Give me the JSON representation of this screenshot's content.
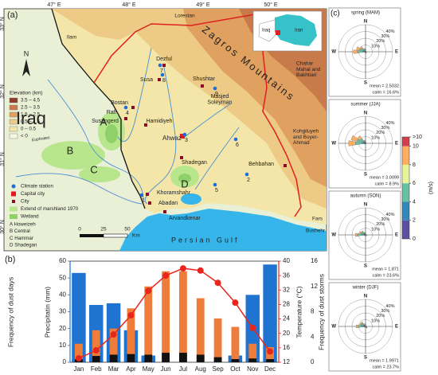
{
  "map": {
    "panel_label": "(a)",
    "lon_labels": [
      "47° E",
      "48° E",
      "49° E",
      "50° E"
    ],
    "lat_labels": [
      "33° N",
      "32° N",
      "31° N",
      "30° N"
    ],
    "north": "N",
    "country_labels": [
      "Iraq"
    ],
    "provinces": [
      "Lorestan",
      "Ilam",
      [
        "Chahar",
        "Mahal and",
        "Bakhtiari"
      ],
      [
        "Kohgiluyeh",
        "and Boyer-",
        "Ahmad"
      ],
      "Fars",
      "Bushehr"
    ],
    "cities": [
      "Dezful",
      "Susa",
      "Shushtar",
      [
        "Masjed",
        "Soleyman"
      ],
      "Bostan",
      "Rafi",
      "Susangerd",
      "Hamidiyeh",
      "Ahwaz",
      "Shadegan",
      "Khoramshahr",
      "Abadan",
      "Arvandkenar",
      "Behbahan"
    ],
    "marsh_labels": [
      "A",
      "B",
      "C",
      "D"
    ],
    "station_numbers": [
      "1",
      "2",
      "3",
      "4",
      "5",
      "6",
      "7",
      "8",
      "9"
    ],
    "mountains": "Zagros Mountains",
    "sea": "Persian Gulf",
    "river": "Euphrates",
    "legend": {
      "elevation_title": "Elevation (km)",
      "elevation_classes": [
        {
          "label": "3.5 – 4.5",
          "color": "#8f3b2b"
        },
        {
          "label": "2.5 – 3.5",
          "color": "#c87a4a"
        },
        {
          "label": "1.5 – 2.5",
          "color": "#e0a060"
        },
        {
          "label": "0.5 – 1.5",
          "color": "#edca85"
        },
        {
          "label": "0 – 0.5",
          "color": "#f3e6a8"
        },
        {
          "label": "< 0",
          "color": "#f6f6e2"
        }
      ],
      "symbols": [
        "Climate station",
        "Capital city",
        "City",
        "Extend of marshland 1970",
        "Wetland"
      ],
      "marshes": [
        "A Howeizeh",
        "B Central",
        "C Hammar",
        "D Shadegan"
      ]
    },
    "scale_bar": [
      "0",
      "25",
      "50",
      "Km"
    ],
    "inset": [
      "Iraq",
      "Iran"
    ]
  },
  "panel_c": {
    "label": "(c)"
  },
  "wind_colorbar": {
    "lim": [
      0,
      11
    ],
    "ticks": [
      0,
      2,
      4,
      6,
      8,
      10,
      {
        "value": 11,
        "label": ">10"
      }
    ],
    "colors": [
      "#5e4fa2",
      "#3288bd",
      "#66c2a5",
      "#e6f598",
      "#fdae61",
      "#d53e4f"
    ],
    "unit": "(m/s)"
  },
  "chart_data": [
    {
      "type": "combo",
      "panel_label": "(b)",
      "categories": [
        "Jan",
        "Feb",
        "Mar",
        "Apr",
        "May",
        "Jun",
        "Jul",
        "Aug",
        "Sep",
        "Oct",
        "Nov",
        "Dec"
      ],
      "ylabel_outer": "Frequency of dust days",
      "ylabel": "Precipitatin (mm)",
      "y2label": "Temperature (°C)",
      "y3label": "Frequency of dust storms",
      "ylim": [
        0,
        60
      ],
      "yticks": [
        0,
        10,
        20,
        30,
        40,
        50,
        60
      ],
      "y2lim": [
        12,
        40
      ],
      "y2ticks": [
        12,
        16,
        20,
        24,
        28,
        32,
        36,
        40
      ],
      "y3lim": [
        0,
        16
      ],
      "y3ticks": [
        0,
        4,
        8,
        12,
        16
      ],
      "series": [
        {
          "type": "bar",
          "color": "#1f74d2",
          "values": [
            53,
            34,
            35,
            19,
            4,
            0,
            0,
            0,
            0,
            4,
            40,
            58
          ]
        },
        {
          "type": "bar",
          "color": "#ee7d3b",
          "values": [
            11,
            19,
            20,
            32,
            45,
            54,
            54,
            38,
            26,
            21,
            11,
            9
          ]
        },
        {
          "type": "bar",
          "color": "#111111",
          "axis": "y3",
          "values": [
            0.5,
            1,
            1.2,
            1.3,
            1.2,
            1.5,
            1.5,
            1.2,
            0.8,
            0.5,
            0.6,
            0.5
          ]
        },
        {
          "type": "line",
          "color": "#e8261e",
          "axis": "y2",
          "values": [
            13.1,
            15.3,
            19.7,
            25,
            31.8,
            36,
            38,
            37.4,
            34,
            28.5,
            21.5,
            15
          ]
        }
      ]
    },
    {
      "type": "windrose",
      "title": "spring (MAM)",
      "categories": [
        "N",
        null,
        null,
        null,
        "E",
        null,
        null,
        null,
        "S",
        null,
        null,
        null,
        "W",
        null,
        null,
        null
      ],
      "rlim": [
        0,
        40
      ],
      "rticks": [
        {
          "value": 10,
          "label": "10%"
        },
        {
          "value": 20,
          "label": "20%"
        },
        {
          "value": 30,
          "label": "30%"
        },
        {
          "value": 40,
          "label": "40%"
        }
      ],
      "annotations": [
        "mean = 2.5032",
        "calm = 16.6%"
      ],
      "series": [
        {
          "color": "#3288bd",
          "values": [
            1,
            0.5,
            0.5,
            0.5,
            0.5,
            0.5,
            1,
            1,
            1,
            0.5,
            0.5,
            0.5,
            4,
            3,
            2,
            1
          ]
        },
        {
          "color": "#66c2a5",
          "values": [
            2,
            0.5,
            0.5,
            0.5,
            0.5,
            0.5,
            1,
            1,
            1,
            0.5,
            0.5,
            1,
            8,
            6,
            5,
            3
          ]
        },
        {
          "color": "#fdae61",
          "values": [
            1,
            0,
            0,
            0,
            0,
            0,
            0,
            0,
            0,
            0,
            0,
            0.5,
            6,
            5,
            3,
            1
          ]
        }
      ]
    },
    {
      "type": "windrose",
      "title": "summer (JJA)",
      "categories": [
        "N",
        null,
        null,
        null,
        "E",
        null,
        null,
        null,
        "S",
        null,
        null,
        null,
        "W",
        null,
        null,
        null
      ],
      "rlim": [
        0,
        40
      ],
      "rticks": [
        {
          "value": 10,
          "label": "10%"
        },
        {
          "value": 20,
          "label": "20%"
        },
        {
          "value": 30,
          "label": "30%"
        },
        {
          "value": 40,
          "label": "40%"
        }
      ],
      "annotations": [
        "mean = 3.0099",
        "calm = 8.9%"
      ],
      "series": [
        {
          "color": "#3288bd",
          "values": [
            1,
            0.5,
            0.5,
            0.5,
            0.5,
            0.5,
            0.5,
            0.5,
            0.5,
            0.5,
            0.5,
            1,
            5,
            4,
            3,
            1
          ]
        },
        {
          "color": "#66c2a5",
          "values": [
            1,
            0.5,
            0.5,
            0.5,
            0.5,
            0.5,
            0.5,
            0.5,
            0.5,
            0.5,
            0.5,
            1,
            10,
            9,
            6,
            2
          ]
        },
        {
          "color": "#fdae61",
          "values": [
            1,
            0,
            0,
            0,
            0,
            0,
            0,
            0,
            0,
            0,
            0,
            0.5,
            10,
            9,
            5,
            2
          ]
        }
      ]
    },
    {
      "type": "windrose",
      "title": "autumn (SON)",
      "categories": [
        "N",
        null,
        null,
        null,
        "E",
        null,
        null,
        null,
        "S",
        null,
        null,
        null,
        "W",
        null,
        null,
        null
      ],
      "rlim": [
        0,
        40
      ],
      "rticks": [
        {
          "value": 10,
          "label": "10%"
        },
        {
          "value": 20,
          "label": "20%"
        },
        {
          "value": 30,
          "label": "30%"
        },
        {
          "value": 40,
          "label": "40%"
        }
      ],
      "annotations": [
        "mean = 1.871",
        "calm = 23.6%"
      ],
      "series": [
        {
          "color": "#3288bd",
          "values": [
            1,
            0.5,
            0.5,
            0.5,
            1,
            1,
            1,
            1,
            1,
            0.5,
            0.5,
            1,
            5,
            3,
            2,
            1
          ]
        },
        {
          "color": "#66c2a5",
          "values": [
            1.5,
            0.5,
            0.5,
            0.5,
            0.5,
            0.5,
            1,
            0.5,
            0.5,
            0.5,
            0.5,
            1,
            7,
            4,
            4,
            2
          ]
        },
        {
          "color": "#fdae61",
          "values": [
            0.5,
            0,
            0,
            0,
            0,
            0,
            0,
            0,
            0,
            0,
            0,
            0.5,
            3,
            2,
            1.5,
            1
          ]
        }
      ]
    },
    {
      "type": "windrose",
      "title": "winter (DJF)",
      "categories": [
        "N",
        null,
        null,
        null,
        "E",
        null,
        null,
        null,
        "S",
        null,
        null,
        null,
        "W",
        null,
        null,
        null
      ],
      "rlim": [
        0,
        40
      ],
      "rticks": [
        {
          "value": 10,
          "label": "10%"
        },
        {
          "value": 20,
          "label": "20%"
        },
        {
          "value": 30,
          "label": "30%"
        },
        {
          "value": 40,
          "label": "40%"
        }
      ],
      "annotations": [
        "mean = 1.9971",
        "calm = 23.7%"
      ],
      "series": [
        {
          "color": "#3288bd",
          "values": [
            1,
            0.5,
            0.5,
            0.5,
            1,
            1,
            1.5,
            1,
            1,
            0.5,
            0.5,
            1,
            5,
            3,
            3,
            1
          ]
        },
        {
          "color": "#66c2a5",
          "values": [
            1.5,
            0.5,
            0.5,
            0.5,
            0.5,
            1,
            1.5,
            0.5,
            0.5,
            0.5,
            0.5,
            1,
            6,
            4,
            4,
            2
          ]
        },
        {
          "color": "#fdae61",
          "values": [
            0.5,
            0,
            0,
            0,
            0,
            0,
            0.5,
            0,
            0,
            0,
            0,
            0.5,
            3,
            2,
            1.5,
            1
          ]
        }
      ]
    }
  ]
}
